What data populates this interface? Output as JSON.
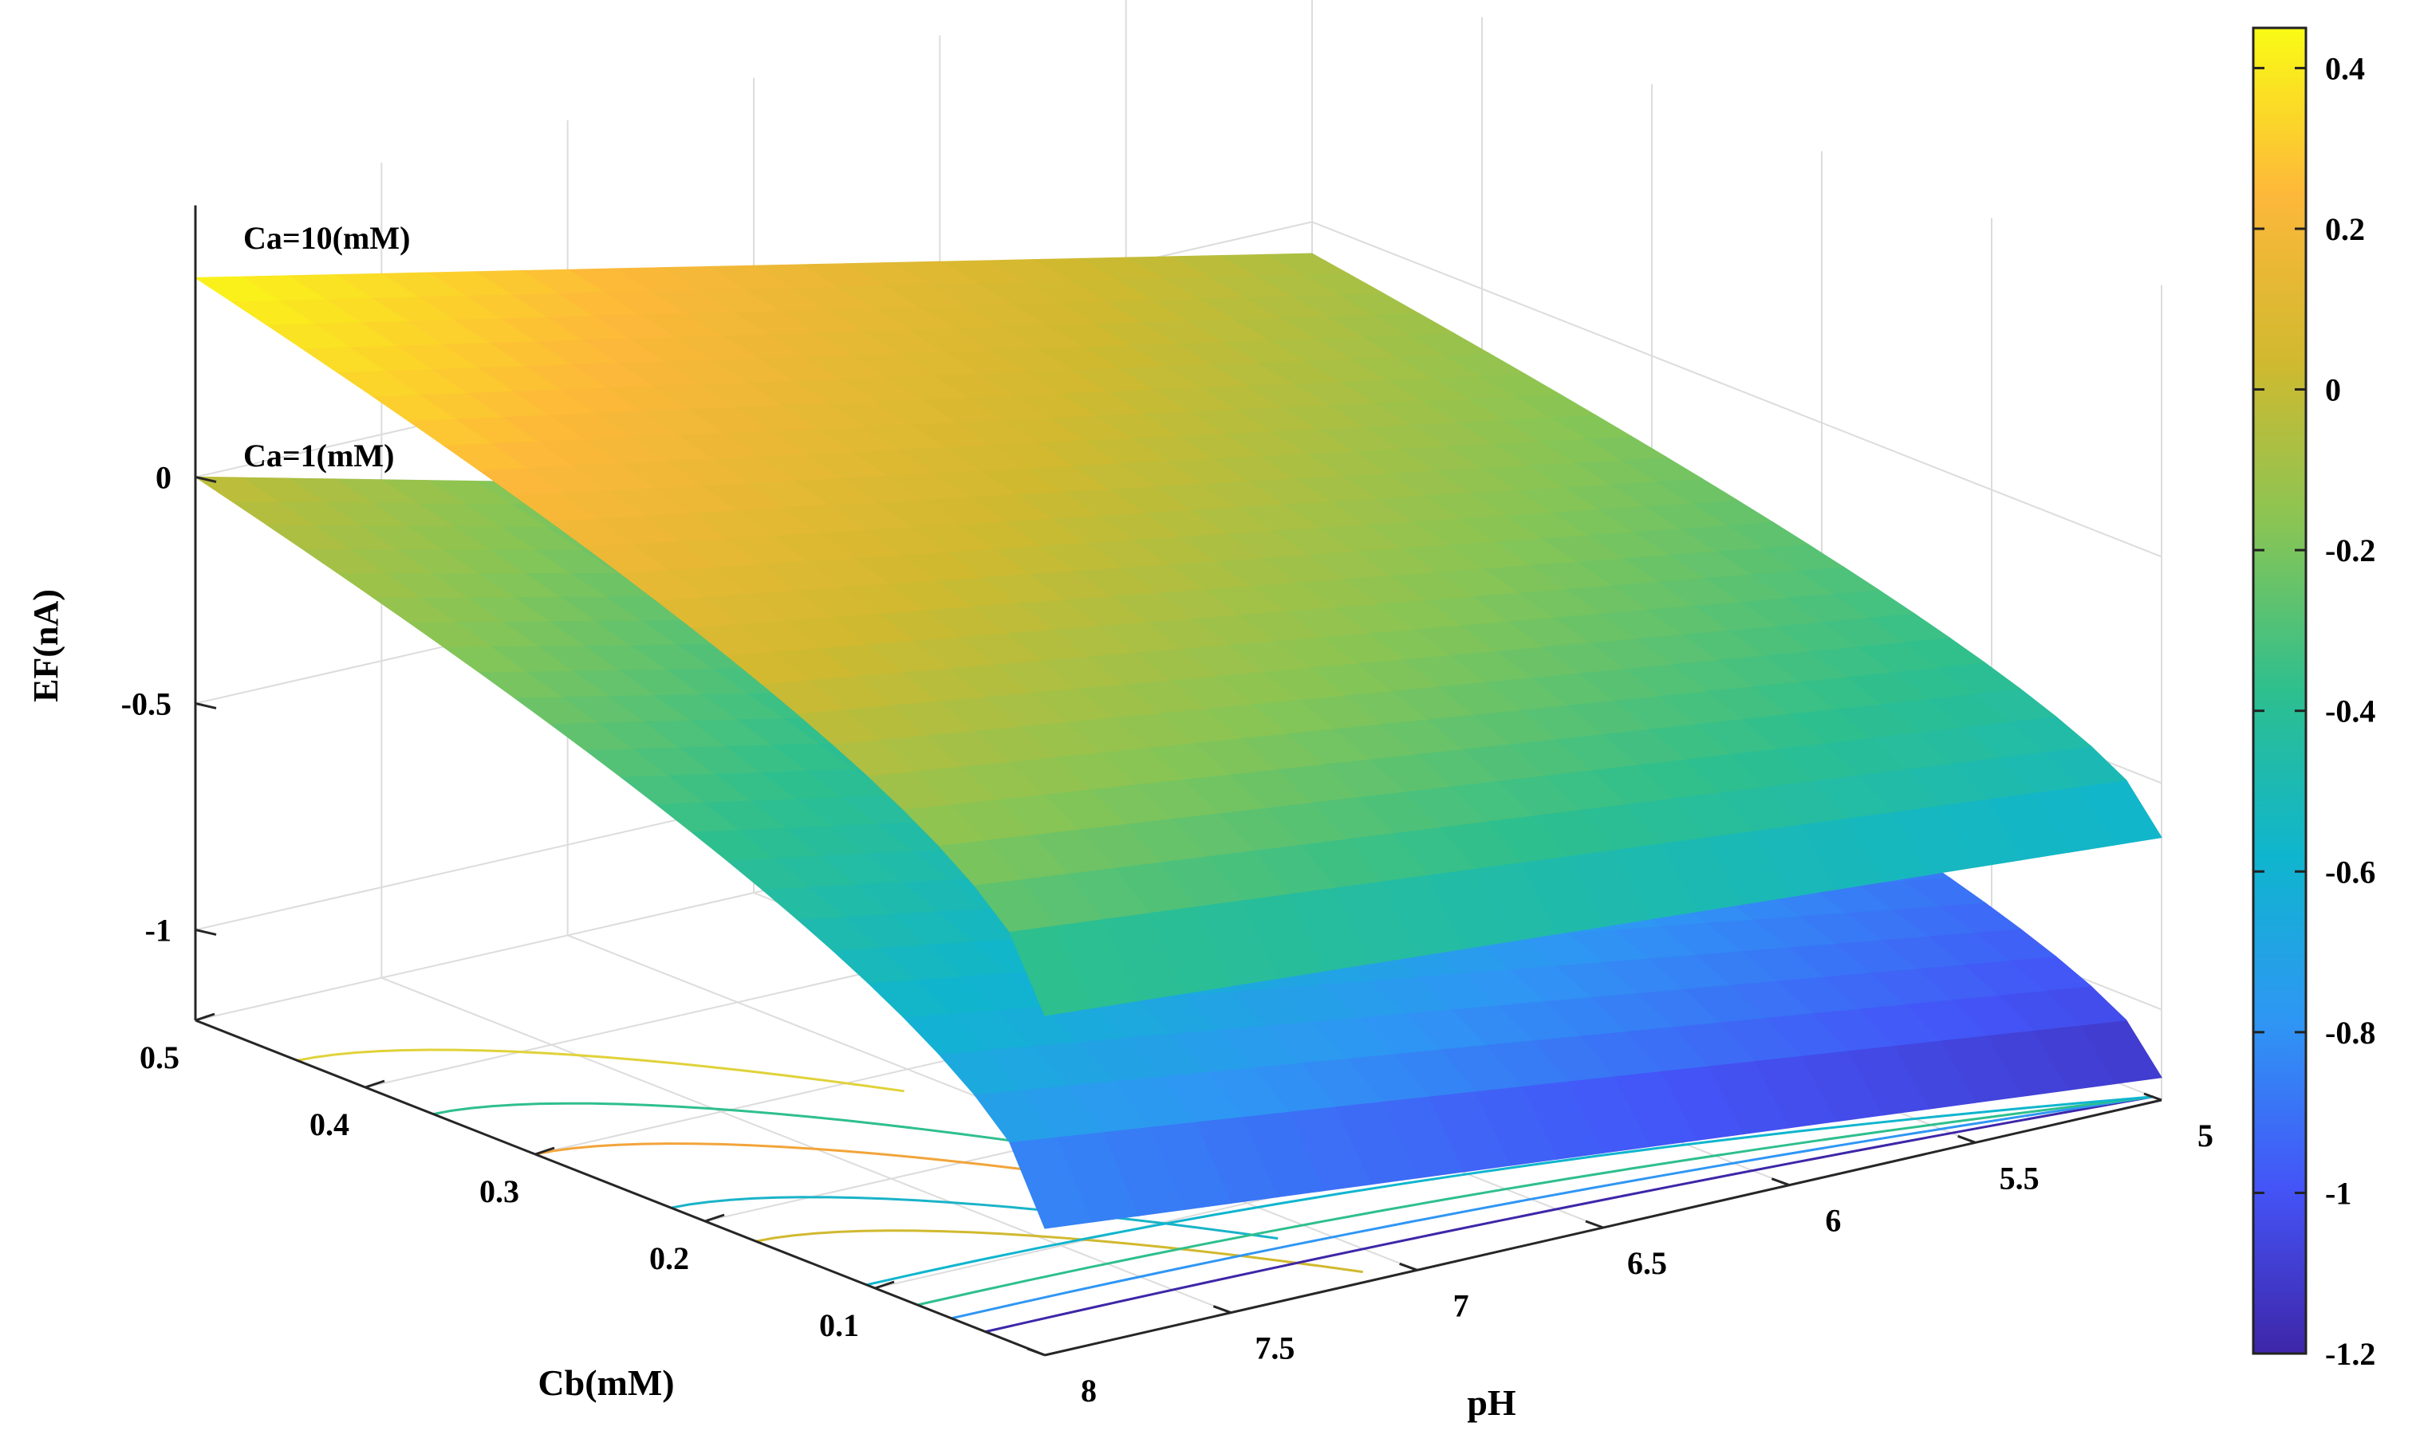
{
  "chart_data": {
    "type": "surface",
    "title": "",
    "xlabel": "pH",
    "ylabel": "Cb(mM)",
    "zlabel": "EF(nA)",
    "xlim": [
      5,
      8
    ],
    "ylim": [
      0,
      0.5
    ],
    "zlim": [
      -1.2,
      0.4
    ],
    "x_ticks": [
      "5",
      "5.5",
      "6",
      "6.5",
      "7",
      "7.5",
      "8"
    ],
    "y_ticks": [
      "0.1",
      "0.2",
      "0.3",
      "0.4",
      "0.5"
    ],
    "z_ticks": [
      "-1",
      "-0.5",
      "0"
    ],
    "grid": true,
    "series": [
      {
        "name": "Ca=10(mM)",
        "corners": {
          "pH8_Cb0.5": 0.44,
          "pH5_Cb0.5": -0.07,
          "pH8_Cb0": -0.45,
          "pH5_Cb0": -0.62
        }
      },
      {
        "name": "Ca=1(mM)",
        "corners": {
          "pH8_Cb0.5": 0.0,
          "pH5_Cb0.5": -0.6,
          "pH8_Cb0": -0.92,
          "pH5_Cb0": -1.15
        }
      }
    ],
    "colorbar": {
      "range": [
        -1.2,
        0.45
      ],
      "ticks": [
        "0.4",
        "0.2",
        "0",
        "-0.2",
        "-0.4",
        "-0.6",
        "-0.8",
        "-1",
        "-1.2"
      ],
      "colormap": [
        "#3e26a8",
        "#4454f7",
        "#2f96f4",
        "#0fb5ce",
        "#2ebf8e",
        "#88c555",
        "#d1b92f",
        "#fdb83a",
        "#f9fb15"
      ]
    }
  }
}
